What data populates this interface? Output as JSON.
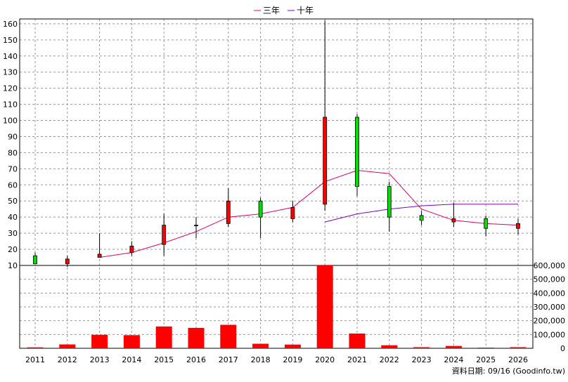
{
  "footer_note": "資料日期: 09/16 (Goodinfo.tw)",
  "colors": {
    "up": "#ff0000",
    "down": "#00dd00",
    "wick": "#000000",
    "ma3": "#e0006a",
    "ma10": "#7b00d6",
    "volume": "#ff0000",
    "grid": "#9a9a9a"
  },
  "chart_data": [
    {
      "type": "candlestick",
      "title": "",
      "legend": {
        "placement": "top-center",
        "entries": [
          "三年",
          "十年"
        ]
      },
      "grid": true,
      "x": [
        "2011",
        "2012",
        "2013",
        "2014",
        "2015",
        "2016",
        "2017",
        "2018",
        "2019",
        "2020",
        "2021",
        "2022",
        "2023",
        "2024",
        "2025",
        "2026"
      ],
      "ylim": [
        10,
        163
      ],
      "y_ticks": [
        10,
        20,
        30,
        40,
        50,
        60,
        70,
        80,
        90,
        100,
        110,
        120,
        130,
        140,
        150,
        160
      ],
      "ohlc": [
        {
          "x": "2011",
          "open": 16,
          "high": 18,
          "low": 11,
          "close": 11
        },
        {
          "x": "2012",
          "open": 11,
          "high": 16,
          "low": 9,
          "close": 14
        },
        {
          "x": "2013",
          "open": 15,
          "high": 30,
          "low": 15,
          "close": 17
        },
        {
          "x": "2014",
          "open": 18,
          "high": 25,
          "low": 16,
          "close": 22
        },
        {
          "x": "2015",
          "open": 23,
          "high": 42,
          "low": 16,
          "close": 35
        },
        {
          "x": "2016",
          "open": 35,
          "high": 40,
          "low": 27,
          "close": 35
        },
        {
          "x": "2017",
          "open": 36,
          "high": 58,
          "low": 34,
          "close": 50
        },
        {
          "x": "2018",
          "open": 50,
          "high": 52,
          "low": 27,
          "close": 40
        },
        {
          "x": "2019",
          "open": 39,
          "high": 50,
          "low": 37,
          "close": 46
        },
        {
          "x": "2020",
          "open": 48,
          "high": 162,
          "low": 44,
          "close": 102
        },
        {
          "x": "2021",
          "open": 102,
          "high": 104,
          "low": 53,
          "close": 59
        },
        {
          "x": "2022",
          "open": 59,
          "high": 62,
          "low": 31,
          "close": 40
        },
        {
          "x": "2023",
          "open": 41,
          "high": 44,
          "low": 35,
          "close": 38
        },
        {
          "x": "2024",
          "open": 37,
          "high": 49,
          "low": 34,
          "close": 39
        },
        {
          "x": "2025",
          "open": 39,
          "high": 41,
          "low": 28,
          "close": 33
        },
        {
          "x": "2026",
          "open": 33,
          "high": 39,
          "low": 29,
          "close": 36
        }
      ],
      "series": [
        {
          "name": "三年",
          "values": [
            null,
            null,
            15,
            18,
            24,
            31,
            40,
            42,
            46,
            62,
            69,
            67,
            45,
            38,
            36,
            35
          ]
        },
        {
          "name": "十年",
          "values": [
            null,
            null,
            null,
            null,
            null,
            null,
            null,
            null,
            null,
            37,
            42,
            45,
            47,
            48,
            48,
            48
          ]
        }
      ]
    },
    {
      "type": "bar",
      "x": [
        "2011",
        "2012",
        "2013",
        "2014",
        "2015",
        "2016",
        "2017",
        "2018",
        "2019",
        "2020",
        "2021",
        "2022",
        "2023",
        "2024",
        "2025",
        "2026"
      ],
      "values": [
        7000,
        28000,
        98000,
        95000,
        158000,
        148000,
        170000,
        33000,
        27000,
        600000,
        107000,
        22000,
        8000,
        17000,
        4000,
        8000
      ],
      "ylim": [
        0,
        600000
      ],
      "y_ticks": [
        0,
        100000,
        200000,
        300000,
        400000,
        500000,
        600000
      ],
      "y_tick_labels": [
        "0",
        "100,000",
        "200,000",
        "300,000",
        "400,000",
        "500,000",
        "600,000"
      ]
    }
  ]
}
